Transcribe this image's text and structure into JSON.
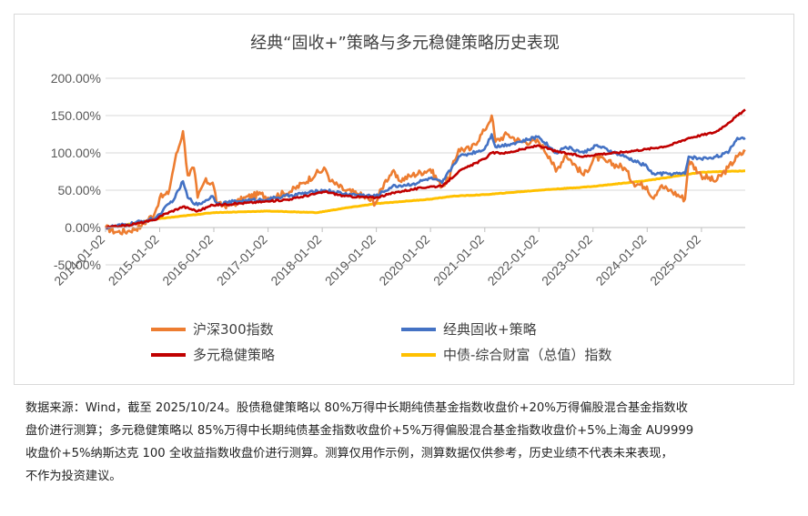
{
  "chart_data": {
    "type": "line",
    "title": "经典“固收+”策略与多元稳健策略历史表现",
    "ylim": [
      -0.5,
      2.0
    ],
    "y_ticks": [
      "-50.00%",
      "0.00%",
      "50.00%",
      "100.00%",
      "150.00%",
      "200.00%"
    ],
    "y_tick_values": [
      -0.5,
      0,
      0.5,
      1.0,
      1.5,
      2.0
    ],
    "x_ticks": [
      "2014-01-02",
      "2015-01-02",
      "2016-01-02",
      "2017-01-02",
      "2018-01-02",
      "2019-01-02",
      "2020-01-02",
      "2021-01-02",
      "2022-01-02",
      "2023-01-02",
      "2024-01-02",
      "2025-01-02"
    ],
    "xlim": [
      "2014-01-02",
      "2025-10-24"
    ],
    "grid": "horizontal",
    "legend_position": "bottom",
    "series": [
      {
        "name": "沪深300指数",
        "color": "#ED7D31",
        "points": [
          [
            "2014-01-02",
            0.0
          ],
          [
            "2014-03-15",
            -0.06
          ],
          [
            "2014-06-01",
            -0.05
          ],
          [
            "2014-09-01",
            0.02
          ],
          [
            "2014-12-01",
            0.2
          ],
          [
            "2015-01-02",
            0.4
          ],
          [
            "2015-03-01",
            0.45
          ],
          [
            "2015-04-15",
            0.9
          ],
          [
            "2015-06-08",
            1.29
          ],
          [
            "2015-07-10",
            0.7
          ],
          [
            "2015-08-20",
            0.8
          ],
          [
            "2015-09-15",
            0.4
          ],
          [
            "2015-11-01",
            0.62
          ],
          [
            "2015-12-25",
            0.6
          ],
          [
            "2016-01-28",
            0.3
          ],
          [
            "2016-05-01",
            0.3
          ],
          [
            "2016-08-01",
            0.4
          ],
          [
            "2016-11-15",
            0.45
          ],
          [
            "2017-01-02",
            0.4
          ],
          [
            "2017-06-01",
            0.48
          ],
          [
            "2017-09-01",
            0.6
          ],
          [
            "2017-11-20",
            0.72
          ],
          [
            "2018-01-24",
            0.78
          ],
          [
            "2018-03-01",
            0.62
          ],
          [
            "2018-06-01",
            0.5
          ],
          [
            "2018-09-01",
            0.45
          ],
          [
            "2018-12-28",
            0.33
          ],
          [
            "2019-02-25",
            0.6
          ],
          [
            "2019-04-20",
            0.75
          ],
          [
            "2019-06-01",
            0.63
          ],
          [
            "2019-09-01",
            0.7
          ],
          [
            "2019-12-31",
            0.78
          ],
          [
            "2020-03-20",
            0.55
          ],
          [
            "2020-05-01",
            0.65
          ],
          [
            "2020-07-10",
            1.05
          ],
          [
            "2020-10-01",
            1.05
          ],
          [
            "2020-12-31",
            1.3
          ],
          [
            "2021-02-18",
            1.5
          ],
          [
            "2021-03-15",
            1.15
          ],
          [
            "2021-06-01",
            1.25
          ],
          [
            "2021-09-01",
            1.15
          ],
          [
            "2021-12-31",
            1.15
          ],
          [
            "2022-03-15",
            0.95
          ],
          [
            "2022-04-27",
            0.75
          ],
          [
            "2022-07-01",
            0.98
          ],
          [
            "2022-10-31",
            0.7
          ],
          [
            "2023-01-20",
            0.95
          ],
          [
            "2023-04-01",
            0.88
          ],
          [
            "2023-08-01",
            0.8
          ],
          [
            "2023-10-01",
            0.6
          ],
          [
            "2023-12-31",
            0.55
          ],
          [
            "2024-02-05",
            0.4
          ],
          [
            "2024-04-01",
            0.55
          ],
          [
            "2024-06-01",
            0.5
          ],
          [
            "2024-09-13",
            0.38
          ],
          [
            "2024-10-08",
            0.9
          ],
          [
            "2024-12-31",
            0.7
          ],
          [
            "2025-04-08",
            0.62
          ],
          [
            "2025-07-01",
            0.8
          ],
          [
            "2025-09-01",
            0.95
          ],
          [
            "2025-10-24",
            1.02
          ]
        ]
      },
      {
        "name": "经典固收+策略",
        "color": "#4472C4",
        "points": [
          [
            "2014-01-02",
            0.0
          ],
          [
            "2014-06-01",
            0.04
          ],
          [
            "2014-12-01",
            0.12
          ],
          [
            "2015-01-02",
            0.18
          ],
          [
            "2015-04-15",
            0.4
          ],
          [
            "2015-06-08",
            0.62
          ],
          [
            "2015-07-10",
            0.4
          ],
          [
            "2015-09-15",
            0.3
          ],
          [
            "2015-12-25",
            0.42
          ],
          [
            "2016-01-28",
            0.32
          ],
          [
            "2016-06-01",
            0.35
          ],
          [
            "2017-01-02",
            0.38
          ],
          [
            "2017-06-01",
            0.43
          ],
          [
            "2018-01-24",
            0.5
          ],
          [
            "2018-06-01",
            0.45
          ],
          [
            "2018-12-28",
            0.42
          ],
          [
            "2019-04-20",
            0.55
          ],
          [
            "2019-09-01",
            0.58
          ],
          [
            "2019-12-31",
            0.66
          ],
          [
            "2020-03-20",
            0.6
          ],
          [
            "2020-07-10",
            0.95
          ],
          [
            "2020-12-31",
            1.05
          ],
          [
            "2021-02-18",
            1.25
          ],
          [
            "2021-03-15",
            1.08
          ],
          [
            "2021-09-01",
            1.15
          ],
          [
            "2021-12-31",
            1.22
          ],
          [
            "2022-04-27",
            1.0
          ],
          [
            "2022-07-01",
            1.08
          ],
          [
            "2022-10-31",
            1.0
          ],
          [
            "2023-01-20",
            1.1
          ],
          [
            "2023-08-01",
            0.95
          ],
          [
            "2023-12-31",
            0.82
          ],
          [
            "2024-02-05",
            0.72
          ],
          [
            "2024-09-13",
            0.72
          ],
          [
            "2024-10-08",
            0.95
          ],
          [
            "2024-12-31",
            0.92
          ],
          [
            "2025-04-08",
            0.95
          ],
          [
            "2025-07-01",
            1.0
          ],
          [
            "2025-09-01",
            1.2
          ],
          [
            "2025-10-24",
            1.2
          ]
        ]
      },
      {
        "name": "多元稳健策略",
        "color": "#C00000",
        "points": [
          [
            "2014-01-02",
            0.0
          ],
          [
            "2014-06-01",
            0.03
          ],
          [
            "2014-12-01",
            0.1
          ],
          [
            "2015-01-02",
            0.15
          ],
          [
            "2015-06-08",
            0.28
          ],
          [
            "2015-09-15",
            0.22
          ],
          [
            "2015-12-25",
            0.3
          ],
          [
            "2016-06-01",
            0.32
          ],
          [
            "2017-01-02",
            0.35
          ],
          [
            "2017-06-01",
            0.38
          ],
          [
            "2018-01-24",
            0.48
          ],
          [
            "2018-06-01",
            0.42
          ],
          [
            "2018-12-28",
            0.4
          ],
          [
            "2019-06-01",
            0.48
          ],
          [
            "2019-12-31",
            0.55
          ],
          [
            "2020-03-20",
            0.55
          ],
          [
            "2020-07-10",
            0.75
          ],
          [
            "2020-12-31",
            0.92
          ],
          [
            "2021-02-18",
            1.0
          ],
          [
            "2021-06-01",
            1.0
          ],
          [
            "2021-12-31",
            1.1
          ],
          [
            "2022-04-27",
            1.02
          ],
          [
            "2022-10-31",
            0.95
          ],
          [
            "2023-01-20",
            0.98
          ],
          [
            "2023-06-01",
            1.0
          ],
          [
            "2023-12-31",
            1.05
          ],
          [
            "2024-06-01",
            1.1
          ],
          [
            "2024-10-08",
            1.2
          ],
          [
            "2025-04-08",
            1.28
          ],
          [
            "2025-07-01",
            1.4
          ],
          [
            "2025-10-24",
            1.58
          ]
        ]
      },
      {
        "name": "中债-综合财富（总值）指数",
        "color": "#FFC000",
        "points": [
          [
            "2014-01-02",
            0.0
          ],
          [
            "2014-06-01",
            0.04
          ],
          [
            "2015-01-02",
            0.12
          ],
          [
            "2016-01-02",
            0.2
          ],
          [
            "2017-01-02",
            0.22
          ],
          [
            "2017-12-01",
            0.2
          ],
          [
            "2018-06-01",
            0.26
          ],
          [
            "2019-01-02",
            0.32
          ],
          [
            "2020-01-02",
            0.38
          ],
          [
            "2020-06-01",
            0.42
          ],
          [
            "2021-01-02",
            0.44
          ],
          [
            "2022-01-02",
            0.5
          ],
          [
            "2023-01-02",
            0.55
          ],
          [
            "2024-01-02",
            0.63
          ],
          [
            "2025-01-02",
            0.74
          ],
          [
            "2025-10-24",
            0.76
          ]
        ]
      }
    ]
  },
  "caption": {
    "lines": [
      "数据来源：Wind，截至 2025/10/24。股债稳健策略以 80%万得中长期纯债基金指数收盘价+20%万得偏股混合基金指数收",
      "盘价进行测算；多元稳健策略以 85%万得中长期纯债基金指数收盘价+5%万得偏股混合基金指数收盘价+5%上海金 AU9999",
      "收盘价+5%纳斯达克 100 全收益指数收盘价进行测算。测算仅用作示例，测算数据仅供参考，历史业绩不代表未来表现，",
      "不作为投资建议。"
    ]
  }
}
